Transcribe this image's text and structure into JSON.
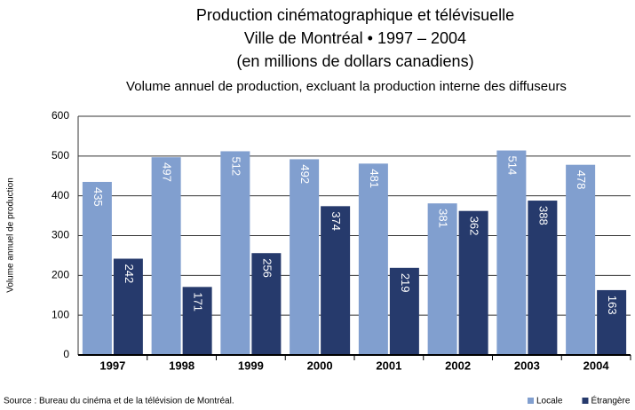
{
  "chart_data": {
    "type": "bar",
    "title": [
      "Production cinématographique et télévisuelle",
      "Ville de Montréal • 1997 – 2004",
      "(en millions de dollars canadiens)"
    ],
    "subtitle": "Volume annuel de production, excluant la production interne des diffuseurs",
    "y_label": "Volume annuel de production",
    "source": "Source : Bureau du cinéma et de la télévision de Montréal.",
    "categories": [
      "1997",
      "1998",
      "1999",
      "2000",
      "2001",
      "2002",
      "2003",
      "2004"
    ],
    "series": [
      {
        "name": "Locale",
        "color": "#819fcf",
        "values": [
          435,
          497,
          512,
          492,
          481,
          381,
          514,
          478
        ]
      },
      {
        "name": "Étrangère",
        "color": "#263a6c",
        "values": [
          242,
          171,
          256,
          374,
          219,
          362,
          388,
          163
        ]
      }
    ],
    "ylim": [
      0,
      600
    ],
    "yticks": [
      0,
      100,
      200,
      300,
      400,
      500,
      600
    ],
    "grid": true,
    "legend": "bottom-right"
  }
}
